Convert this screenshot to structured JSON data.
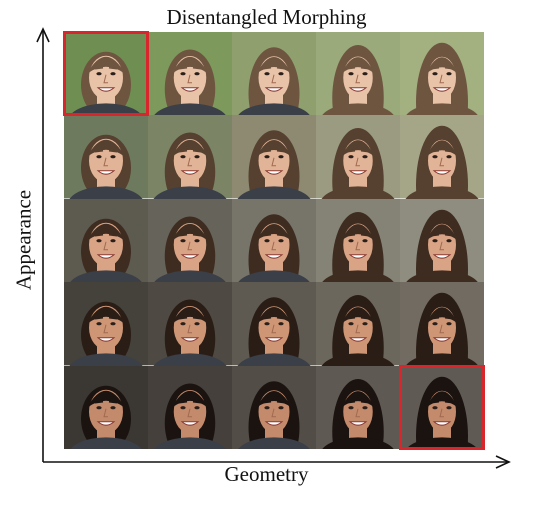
{
  "title": "Disentangled Morphing",
  "axes": {
    "y_label": "Appearance",
    "x_label": "Geometry"
  },
  "grid": {
    "rows": 5,
    "cols": 5,
    "highlighted_cells": [
      [
        0,
        0
      ],
      [
        4,
        4
      ]
    ],
    "highlight_color": "#d9262c"
  },
  "colors": {
    "axis": "#111111"
  }
}
